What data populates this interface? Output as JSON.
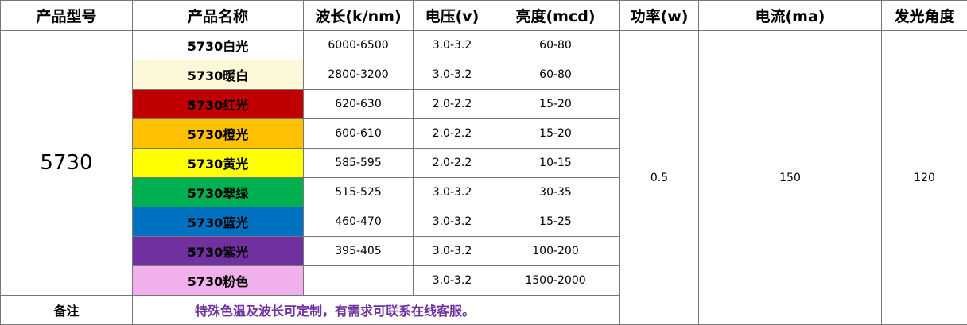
{
  "table": {
    "headers": [
      "产品型号",
      "产品名称",
      "波长(k/nm)",
      "电压(v)",
      "亮度(mcd)",
      "功率(w)",
      "电流(ma)",
      "发光角度"
    ],
    "model": "5730",
    "power": "0.5",
    "current": "150",
    "angle": "120",
    "rows": [
      {
        "name": "5730白光",
        "color": "#ffffff",
        "wavelength": "6000-6500",
        "voltage": "3.0-3.2",
        "brightness": "60-80"
      },
      {
        "name": "5730暖白",
        "color": "#fdf9d8",
        "wavelength": "2800-3200",
        "voltage": "3.0-3.2",
        "brightness": "60-80"
      },
      {
        "name": "5730红光",
        "color": "#c00000",
        "wavelength": "620-630",
        "voltage": "2.0-2.2",
        "brightness": "15-20"
      },
      {
        "name": "5730橙光",
        "color": "#ffc000",
        "wavelength": "600-610",
        "voltage": "2.0-2.2",
        "brightness": "15-20"
      },
      {
        "name": "5730黄光",
        "color": "#ffff00",
        "wavelength": "585-595",
        "voltage": "2.0-2.2",
        "brightness": "10-15"
      },
      {
        "name": "5730翠绿",
        "color": "#00b050",
        "wavelength": "515-525",
        "voltage": "3.0-3.2",
        "brightness": "30-35"
      },
      {
        "name": "5730蓝光",
        "color": "#0070c0",
        "wavelength": "460-470",
        "voltage": "3.0-3.2",
        "brightness": "15-25"
      },
      {
        "name": "5730紫光",
        "color": "#7030a0",
        "wavelength": "395-405",
        "voltage": "3.0-3.2",
        "brightness": "100-200"
      },
      {
        "name": "5730粉色",
        "color": "#f0b0ec",
        "wavelength": null,
        "voltage": "3.0-3.2",
        "brightness": "1500-2000"
      }
    ],
    "note_label": "备注",
    "note": "特殊色温及波长可定制，有需求可联系在线客服。"
  }
}
